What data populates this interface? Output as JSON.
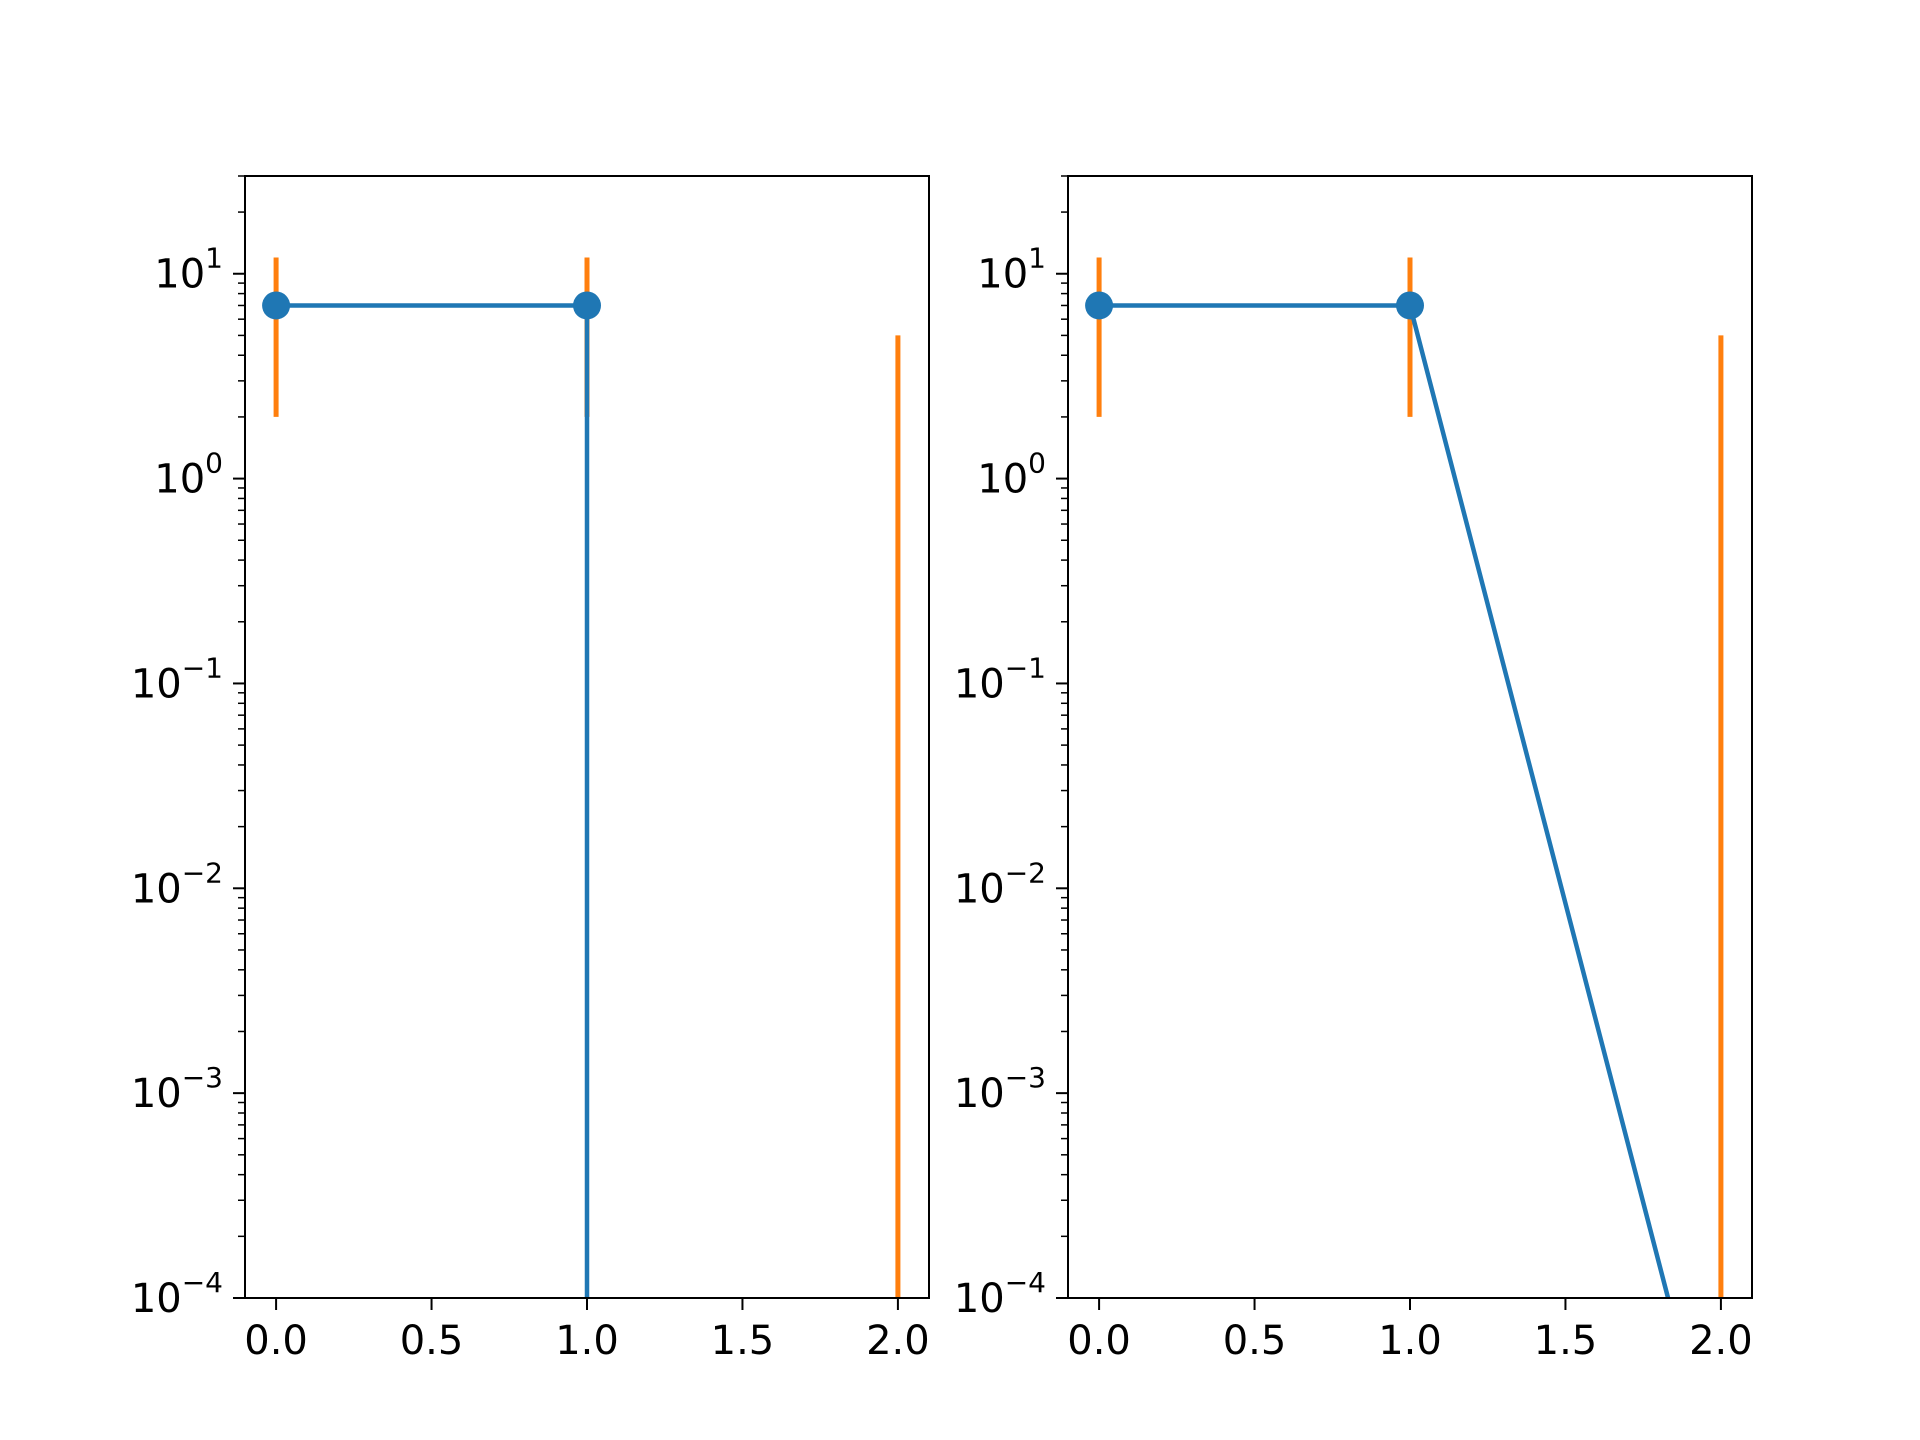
{
  "chart_data": [
    {
      "type": "line",
      "panel": "left",
      "title": "",
      "xlabel": "",
      "ylabel": "",
      "yscale": "log",
      "xlim": [
        -0.1,
        2.1
      ],
      "ylim": [
        0.0001,
        30
      ],
      "x_ticks": [
        {
          "value": 0.0,
          "label": "0.0"
        },
        {
          "value": 0.5,
          "label": "0.5"
        },
        {
          "value": 1.0,
          "label": "1.0"
        },
        {
          "value": 1.5,
          "label": "1.5"
        },
        {
          "value": 2.0,
          "label": "2.0"
        }
      ],
      "y_ticks": [
        {
          "value": 0.0001,
          "base": "10",
          "exponent": "−4"
        },
        {
          "value": 0.001,
          "base": "10",
          "exponent": "−3"
        },
        {
          "value": 0.01,
          "base": "10",
          "exponent": "−2"
        },
        {
          "value": 0.1,
          "base": "10",
          "exponent": "−1"
        },
        {
          "value": 1,
          "base": "10",
          "exponent": "0"
        },
        {
          "value": 10,
          "base": "10",
          "exponent": "1"
        }
      ],
      "grid": false,
      "series": [
        {
          "kind": "line",
          "color": "#1f77b4",
          "marker_x": [
            0,
            1
          ],
          "marker_y": [
            7,
            7
          ],
          "line_points": [
            [
              0,
              7
            ],
            [
              1,
              7
            ],
            [
              1,
              0.0001
            ]
          ]
        },
        {
          "kind": "errorbar",
          "color": "#ff7f0e",
          "bars": [
            {
              "x": 0,
              "low": 2,
              "high": 12
            },
            {
              "x": 1,
              "low": 2,
              "high": 12
            },
            {
              "x": 2,
              "low": 0.0001,
              "high": 5
            }
          ]
        }
      ]
    },
    {
      "type": "line",
      "panel": "right",
      "title": "",
      "xlabel": "",
      "ylabel": "",
      "yscale": "log",
      "xlim": [
        -0.1,
        2.1
      ],
      "ylim": [
        0.0001,
        30
      ],
      "x_ticks": [
        {
          "value": 0.0,
          "label": "0.0"
        },
        {
          "value": 0.5,
          "label": "0.5"
        },
        {
          "value": 1.0,
          "label": "1.0"
        },
        {
          "value": 1.5,
          "label": "1.5"
        },
        {
          "value": 2.0,
          "label": "2.0"
        }
      ],
      "y_ticks": [
        {
          "value": 0.0001,
          "base": "10",
          "exponent": "−4"
        },
        {
          "value": 0.001,
          "base": "10",
          "exponent": "−3"
        },
        {
          "value": 0.01,
          "base": "10",
          "exponent": "−2"
        },
        {
          "value": 0.1,
          "base": "10",
          "exponent": "−1"
        },
        {
          "value": 1,
          "base": "10",
          "exponent": "0"
        },
        {
          "value": 10,
          "base": "10",
          "exponent": "1"
        }
      ],
      "grid": false,
      "series": [
        {
          "kind": "line",
          "color": "#1f77b4",
          "marker_x": [
            0,
            1
          ],
          "marker_y": [
            7,
            7
          ],
          "line_points": [
            [
              0,
              7
            ],
            [
              1,
              7
            ],
            [
              1.83,
              0.0001
            ]
          ]
        },
        {
          "kind": "errorbar",
          "color": "#ff7f0e",
          "bars": [
            {
              "x": 0,
              "low": 2,
              "high": 12
            },
            {
              "x": 1,
              "low": 2,
              "high": 12
            },
            {
              "x": 2,
              "low": 0.0001,
              "high": 5
            }
          ]
        }
      ]
    }
  ]
}
